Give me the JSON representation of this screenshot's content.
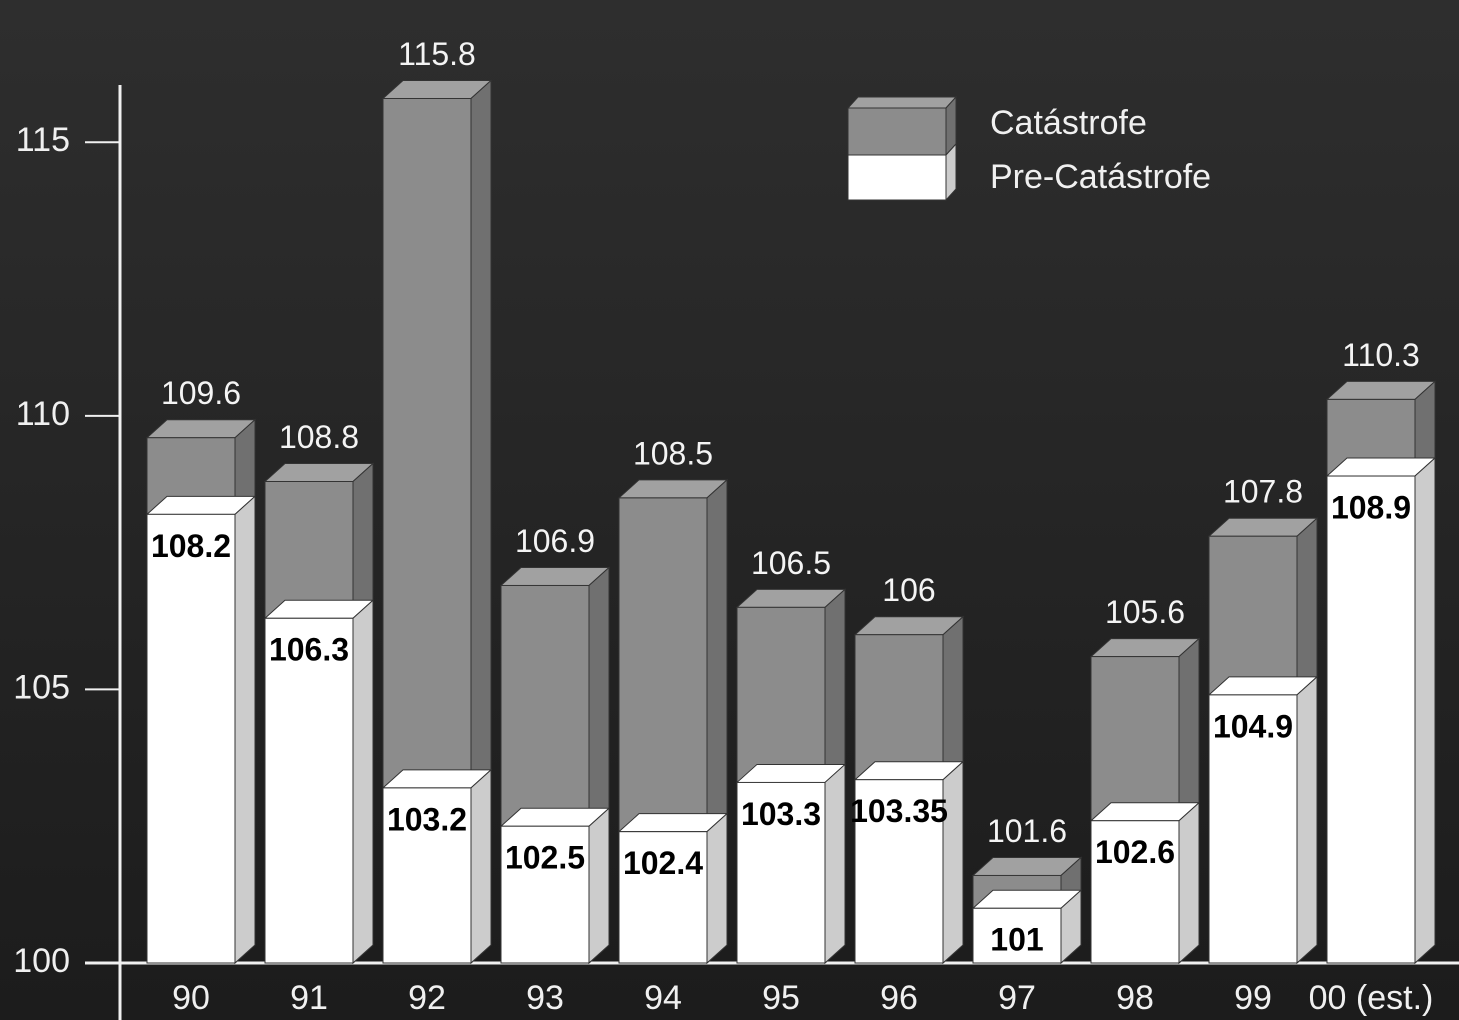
{
  "chart_data": {
    "type": "overlap_bar3d",
    "categories": [
      "90",
      "91",
      "92",
      "93",
      "94",
      "95",
      "96",
      "97",
      "98",
      "99",
      "00 (est.)"
    ],
    "series": [
      {
        "name": "Catástrofe",
        "color": "#8c8c8c",
        "values": [
          109.6,
          108.8,
          115.8,
          106.9,
          108.5,
          106.5,
          106,
          101.6,
          105.6,
          107.8,
          110.3
        ]
      },
      {
        "name": "Pre-Catástrofe",
        "color": "#ffffff",
        "values": [
          108.2,
          106.3,
          103.2,
          102.5,
          102.4,
          103.3,
          103.35,
          101,
          102.6,
          104.9,
          108.9
        ]
      }
    ],
    "ylim": [
      100,
      117.6
    ],
    "yticks": [
      100,
      105,
      110,
      115
    ]
  }
}
